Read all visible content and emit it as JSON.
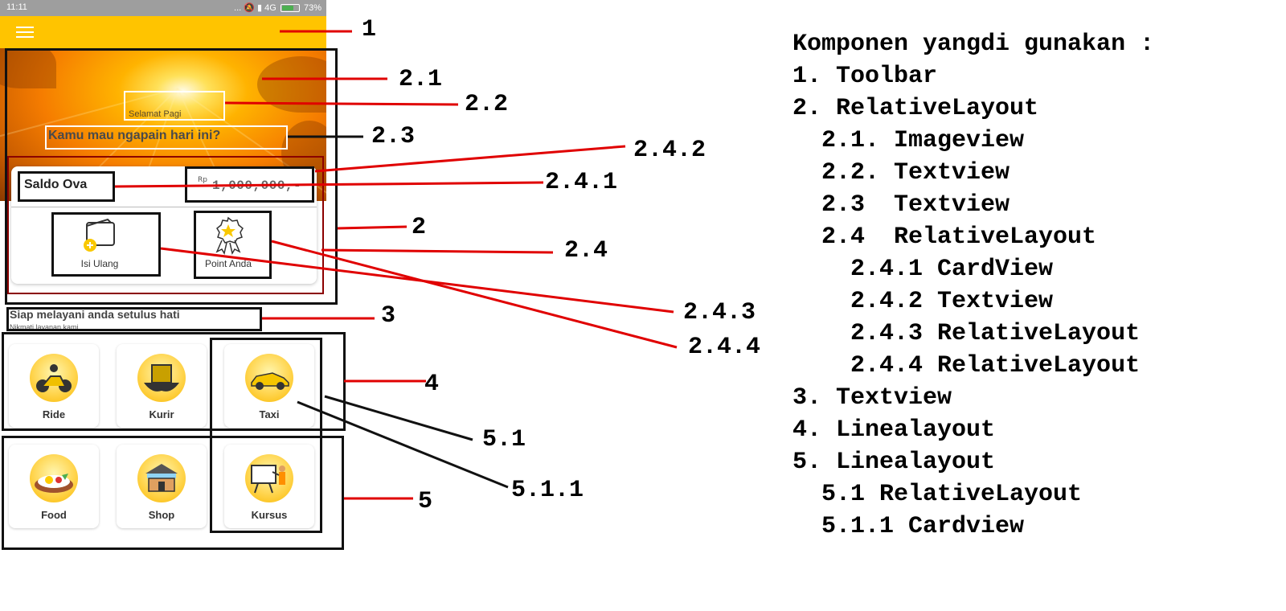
{
  "status_bar": {
    "time": "11:11",
    "network": "4G",
    "battery_percent": "73%",
    "battery_level": 0.73
  },
  "toolbar": {
    "menu_icon": "hamburger-menu-icon"
  },
  "hero": {
    "greeting": "Selamat Pagi",
    "question": "Kamu mau ngapain hari ini?"
  },
  "balance_card": {
    "label": "Saldo Ova",
    "currency": "Rp",
    "amount": "1,000,000,-",
    "actions": [
      {
        "label": "Isi Ulang",
        "icon": "wallet-add-icon"
      },
      {
        "label": "Point Anda",
        "icon": "award-badge-icon"
      }
    ]
  },
  "tagline": {
    "title": "Siap melayani anda setulus hati",
    "subtitle": "Nikmati layanan kami"
  },
  "services_row1": [
    {
      "label": "Ride",
      "icon": "motorcycle-icon"
    },
    {
      "label": "Kurir",
      "icon": "package-hands-icon"
    },
    {
      "label": "Taxi",
      "icon": "car-icon"
    }
  ],
  "services_row2": [
    {
      "label": "Food",
      "icon": "food-plate-icon"
    },
    {
      "label": "Shop",
      "icon": "shop-store-icon"
    },
    {
      "label": "Kursus",
      "icon": "teacher-board-icon"
    }
  ],
  "annotations": {
    "a1": "1",
    "a2": "2",
    "a21": "2.1",
    "a22": "2.2",
    "a23": "2.3",
    "a24": "2.4",
    "a241": "2.4.1",
    "a242": "2.4.2",
    "a243": "2.4.3",
    "a244": "2.4.4",
    "a3": "3",
    "a4": "4",
    "a5": "5",
    "a51": "5.1",
    "a511": "5.1.1"
  },
  "legend": {
    "title": "Komponen yangdi gunakan :",
    "items": [
      "1. Toolbar",
      "2. RelativeLayout",
      "  2.1. Imageview",
      "  2.2. Textview",
      "  2.3  Textview",
      "  2.4  RelativeLayout",
      "    2.4.1 CardView",
      "    2.4.2 Textview",
      "    2.4.3 RelativeLayout",
      "    2.4.4 RelativeLayout",
      "3. Textview",
      "4. Linealayout",
      "5. Linealayout",
      "  5.1 RelativeLayout",
      "  5.1.1 Cardview"
    ]
  },
  "colors": {
    "toolbar": "#ffc400",
    "annotation_red": "#e00000",
    "annotation_black": "#111111"
  }
}
